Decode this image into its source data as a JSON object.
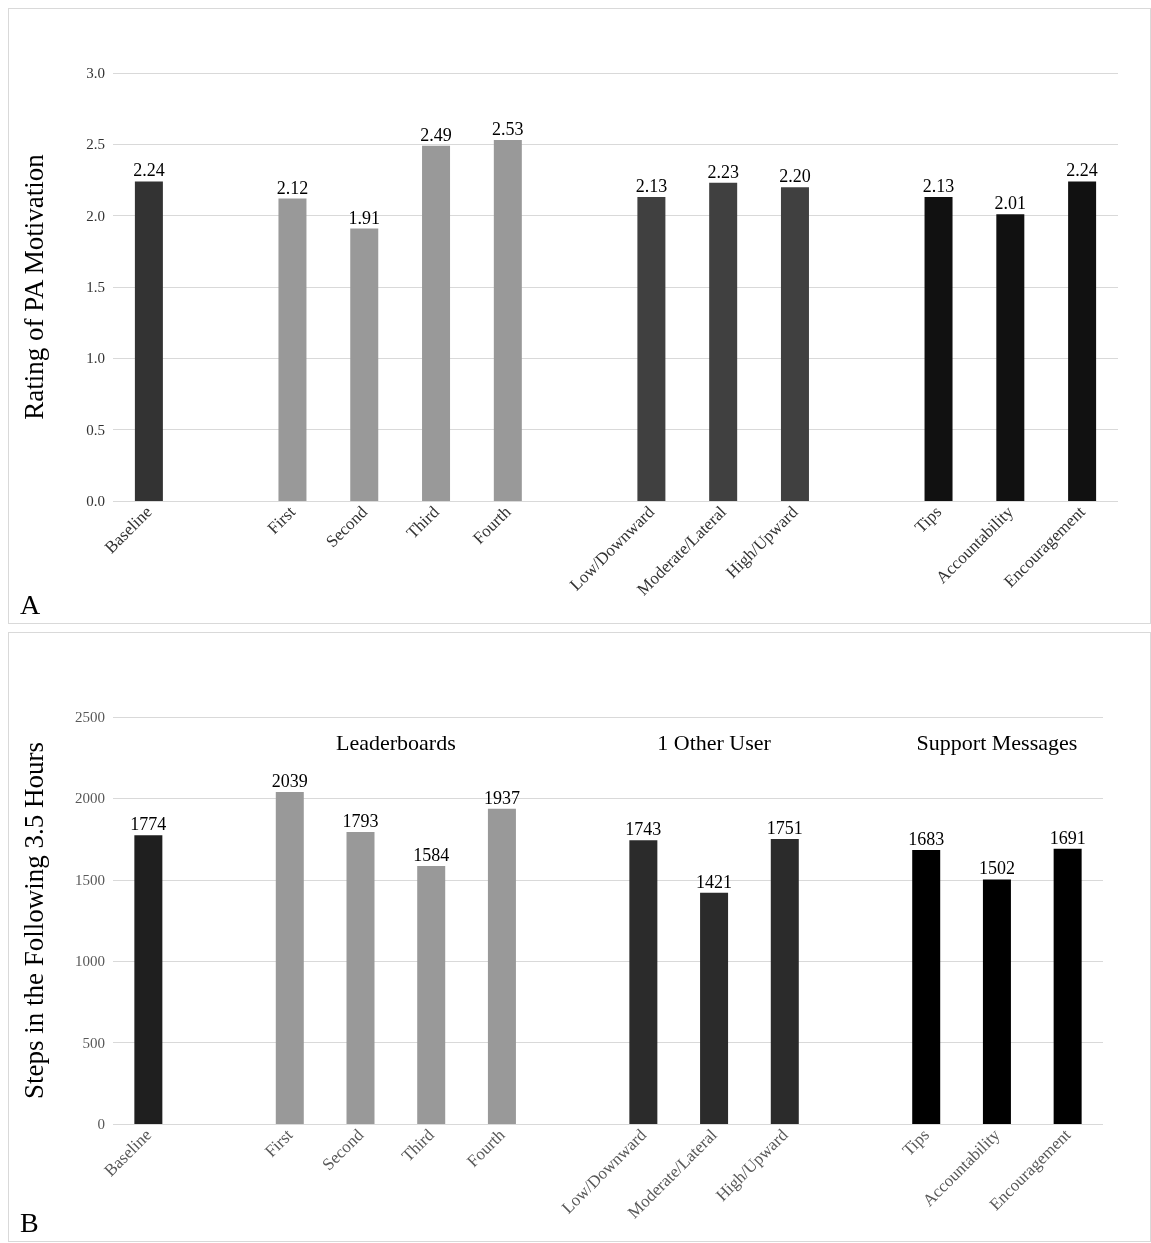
{
  "chart_data": [
    {
      "type": "bar",
      "title": "A",
      "ylabel": "Rating of PA Motivation",
      "categories": [
        "Baseline",
        null,
        "First",
        "Second",
        "Third",
        "Fourth",
        null,
        "Low/Downward",
        "Moderate/Lateral",
        "High/Upward",
        null,
        "Tips",
        "Accountability",
        "Encouragement"
      ],
      "values": [
        2.24,
        null,
        2.12,
        1.91,
        2.49,
        2.53,
        null,
        2.13,
        2.23,
        2.2,
        null,
        2.13,
        2.01,
        2.24
      ],
      "value_labels": [
        "2.24",
        null,
        "2.12",
        "1.91",
        "2.49",
        "2.53",
        null,
        "2.13",
        "2.23",
        "2.20",
        null,
        "2.13",
        "2.01",
        "2.24"
      ],
      "colors": [
        "#333333",
        null,
        "#999999",
        "#999999",
        "#999999",
        "#999999",
        null,
        "#404040",
        "#404040",
        "#404040",
        null,
        "#111111",
        "#111111",
        "#111111"
      ],
      "ylim": [
        0,
        3
      ],
      "yticks": [
        {
          "value": 0,
          "label": "0.0"
        },
        0.5,
        {
          "value": 1,
          "label": "1.0"
        },
        1.5,
        {
          "value": 2,
          "label": "2.0"
        },
        2.5,
        {
          "value": 3,
          "label": "3.0"
        }
      ],
      "grid": "y"
    },
    {
      "type": "bar",
      "title": "B",
      "ylabel": "Steps in the Following 3.5 Hours",
      "annotations": [
        "Leaderboards",
        "1 Other User",
        "Support Messages"
      ],
      "categories": [
        "Baseline",
        null,
        "First",
        "Second",
        "Third",
        "Fourth",
        null,
        "Low/Downward",
        "Moderate/Lateral",
        "High/Upward",
        null,
        "Tips",
        "Accountability",
        "Encouragement"
      ],
      "values": [
        1774,
        null,
        2039,
        1793,
        1584,
        1937,
        null,
        1743,
        1421,
        1751,
        null,
        1683,
        1502,
        1691
      ],
      "data_labels": true,
      "colors": [
        "#1f1f1f",
        null,
        "#999999",
        "#999999",
        "#999999",
        "#999999",
        null,
        "#2b2b2b",
        "#2b2b2b",
        "#2b2b2b",
        null,
        "#000000",
        "#000000",
        "#000000"
      ],
      "ylim": [
        0,
        2500
      ],
      "yticks": [
        0,
        500,
        1000,
        1500,
        2000,
        2500
      ],
      "grid": "y"
    }
  ]
}
